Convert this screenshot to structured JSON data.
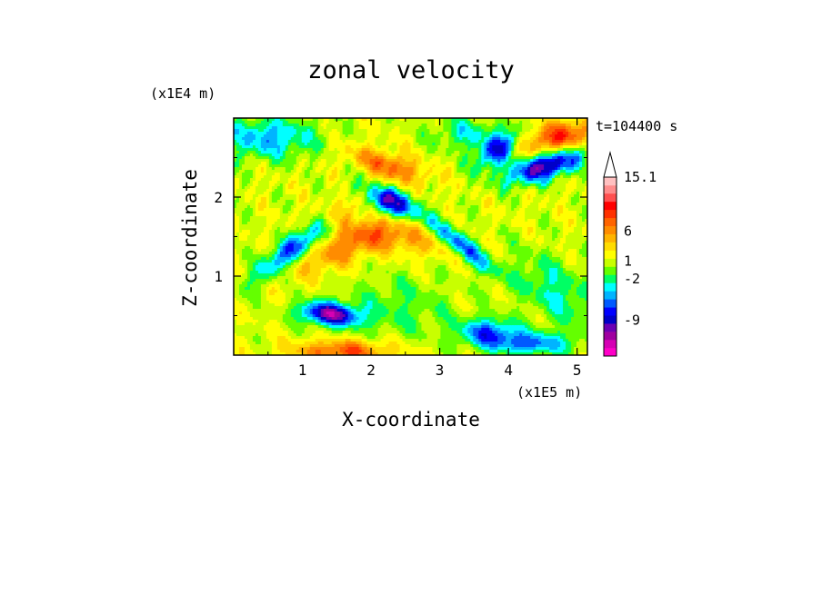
{
  "chart_data": {
    "type": "heatmap",
    "title": "zonal velocity",
    "xlabel": "X-coordinate",
    "ylabel": "Z-coordinate",
    "x_unit": "(x1E5 m)",
    "y_unit": "(x1E4 m)",
    "time_label": "t=104400 s",
    "xlim": [
      0,
      5.15
    ],
    "ylim": [
      0,
      3.0
    ],
    "x_ticks": [
      1,
      2,
      3,
      4,
      5
    ],
    "y_ticks": [
      1,
      2
    ],
    "colorbar": {
      "labels": [
        "15.1",
        "6",
        "1",
        "-2",
        "-9"
      ],
      "label_values": [
        15.1,
        6,
        1,
        -2,
        -9
      ],
      "vmin": -15,
      "vmax": 15.1,
      "colors": [
        "#ff00c8",
        "#d600b4",
        "#a000a0",
        "#6c00b4",
        "#0000c8",
        "#0000ff",
        "#005aff",
        "#00b4ff",
        "#00ffff",
        "#00ff64",
        "#64ff00",
        "#c8ff00",
        "#ffff00",
        "#ffdc00",
        "#ffb400",
        "#ff8c00",
        "#ff6400",
        "#ff3200",
        "#ff0000",
        "#ff5050",
        "#ff8c8c",
        "#ffc0c0"
      ],
      "extend": "max"
    },
    "field_features": [
      {
        "x": 1.0,
        "z": 1.45,
        "value": -10,
        "sx": 0.55,
        "sz": 0.12,
        "angle": 35
      },
      {
        "x": 2.25,
        "z": 1.95,
        "value": -11,
        "sx": 0.3,
        "sz": 0.12,
        "angle": -20
      },
      {
        "x": 3.3,
        "z": 1.4,
        "value": -8,
        "sx": 0.4,
        "sz": 0.1,
        "angle": -35
      },
      {
        "x": 1.4,
        "z": 0.52,
        "value": -12,
        "sx": 0.3,
        "sz": 0.1,
        "angle": -5
      },
      {
        "x": 4.55,
        "z": 2.4,
        "value": -12,
        "sx": 0.4,
        "sz": 0.12,
        "angle": 15
      },
      {
        "x": 3.85,
        "z": 2.6,
        "value": -9,
        "sx": 0.25,
        "sz": 0.12,
        "angle": 30
      },
      {
        "x": 1.5,
        "z": 1.8,
        "value": 6,
        "sx": 0.5,
        "sz": 0.12,
        "angle": 30
      },
      {
        "x": 1.6,
        "z": 1.35,
        "value": 5,
        "sx": 0.55,
        "sz": 0.15,
        "angle": 20
      },
      {
        "x": 2.25,
        "z": 2.4,
        "value": 6,
        "sx": 0.4,
        "sz": 0.12,
        "angle": -15
      },
      {
        "x": 4.75,
        "z": 2.75,
        "value": 8,
        "sx": 0.4,
        "sz": 0.14,
        "angle": 10
      },
      {
        "x": 2.4,
        "z": 1.5,
        "value": 4,
        "sx": 0.6,
        "sz": 0.15,
        "angle": -10
      },
      {
        "x": 1.6,
        "z": 0.05,
        "value": 7,
        "sx": 0.5,
        "sz": 0.1,
        "angle": 0
      },
      {
        "x": 4.3,
        "z": 0.15,
        "value": -7,
        "sx": 0.45,
        "sz": 0.1,
        "angle": 0
      },
      {
        "x": 3.7,
        "z": 0.3,
        "value": -7,
        "sx": 0.3,
        "sz": 0.12,
        "angle": 0
      },
      {
        "x": 2.4,
        "z": 0.6,
        "value": -2.5,
        "sx": 0.6,
        "sz": 0.3,
        "angle": 0
      },
      {
        "x": 4.7,
        "z": 0.8,
        "value": -4,
        "sx": 0.5,
        "sz": 0.25,
        "angle": -30
      },
      {
        "x": 0.5,
        "z": 2.75,
        "value": -6,
        "sx": 0.5,
        "sz": 0.18,
        "angle": 0
      },
      {
        "x": 3.4,
        "z": 2.8,
        "value": -4,
        "sx": 0.35,
        "sz": 0.15,
        "angle": 0
      }
    ]
  }
}
